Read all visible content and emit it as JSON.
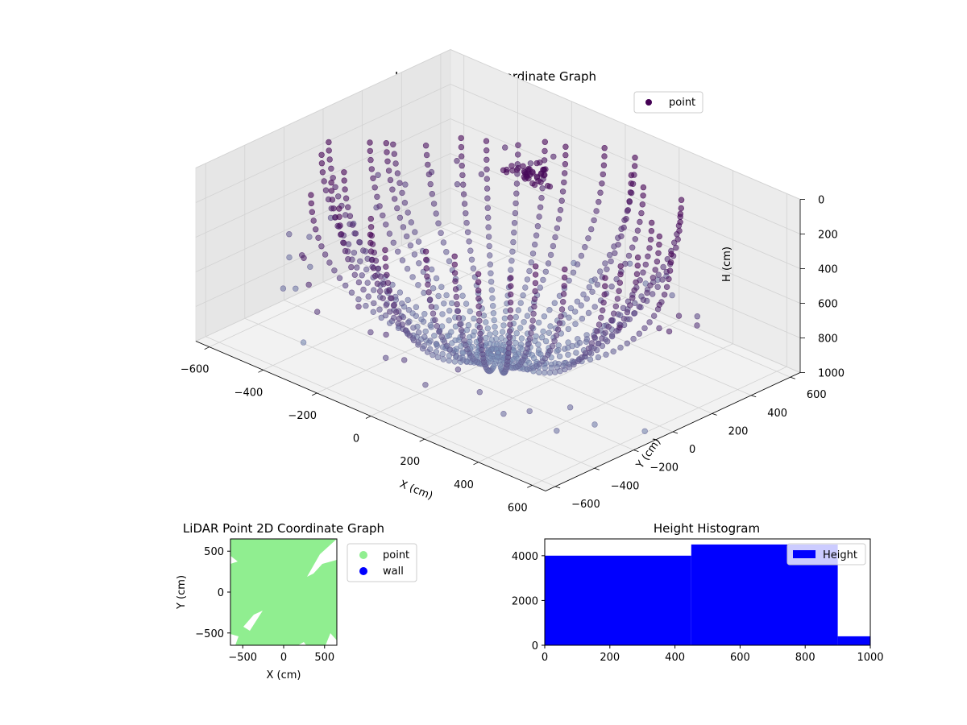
{
  "chart_data": [
    {
      "type": "scatter",
      "projection": "3d",
      "title": "LiDAR Point 3D Coordinate Graph",
      "xlabel": "X (cm)",
      "ylabel": "Y (cm)",
      "zlabel": "H (cm)",
      "xlim": [
        -650,
        650
      ],
      "ylim": [
        -650,
        650
      ],
      "zlim": [
        1000,
        0
      ],
      "z_inverted": true,
      "xticks": [
        -600,
        -400,
        -200,
        0,
        200,
        400,
        600
      ],
      "yticks": [
        -600,
        -400,
        -200,
        0,
        200,
        400,
        600
      ],
      "zticks": [
        0,
        200,
        400,
        600,
        800,
        1000
      ],
      "grid": true,
      "legend": {
        "placement": "top-right",
        "entries": [
          "point"
        ]
      },
      "series": [
        {
          "name": "point",
          "color_low": "#440154",
          "color_high": "#7b93b8",
          "structure": "rings of points, bowl-shaped, about 36 meridian arcs from the rim down to the center"
        }
      ],
      "features": [
        {
          "label": "",
          "x": -100,
          "y": 300,
          "h": 150
        }
      ]
    },
    {
      "type": "scatter",
      "title": "LiDAR Point 2D Coordinate Graph",
      "xlabel": "X (cm)",
      "ylabel": "Y (cm)",
      "xlim": [
        -650,
        650
      ],
      "ylim": [
        -650,
        650
      ],
      "xticks": [
        -500,
        0,
        500
      ],
      "yticks": [
        -500,
        0,
        500
      ],
      "legend": {
        "placement": "outside-right",
        "entries": [
          {
            "name": "point",
            "color": "#90ee90"
          },
          {
            "name": "wall",
            "color": "#0000ff"
          }
        ]
      }
    },
    {
      "type": "bar",
      "subtype": "histogram",
      "title": "Height Histogram",
      "xlim": [
        0,
        1000
      ],
      "ylim": [
        0,
        4750
      ],
      "xticks": [
        0,
        200,
        400,
        600,
        800,
        1000
      ],
      "yticks": [
        0,
        2000,
        4000
      ],
      "bins": [
        {
          "start": 0,
          "end": 450,
          "value": 4000
        },
        {
          "start": 450,
          "end": 900,
          "value": 4500
        },
        {
          "start": 900,
          "end": 1000,
          "value": 400
        }
      ],
      "color": "#0000ff",
      "legend": {
        "placement": "top-right",
        "entries": [
          "Height"
        ]
      }
    }
  ]
}
